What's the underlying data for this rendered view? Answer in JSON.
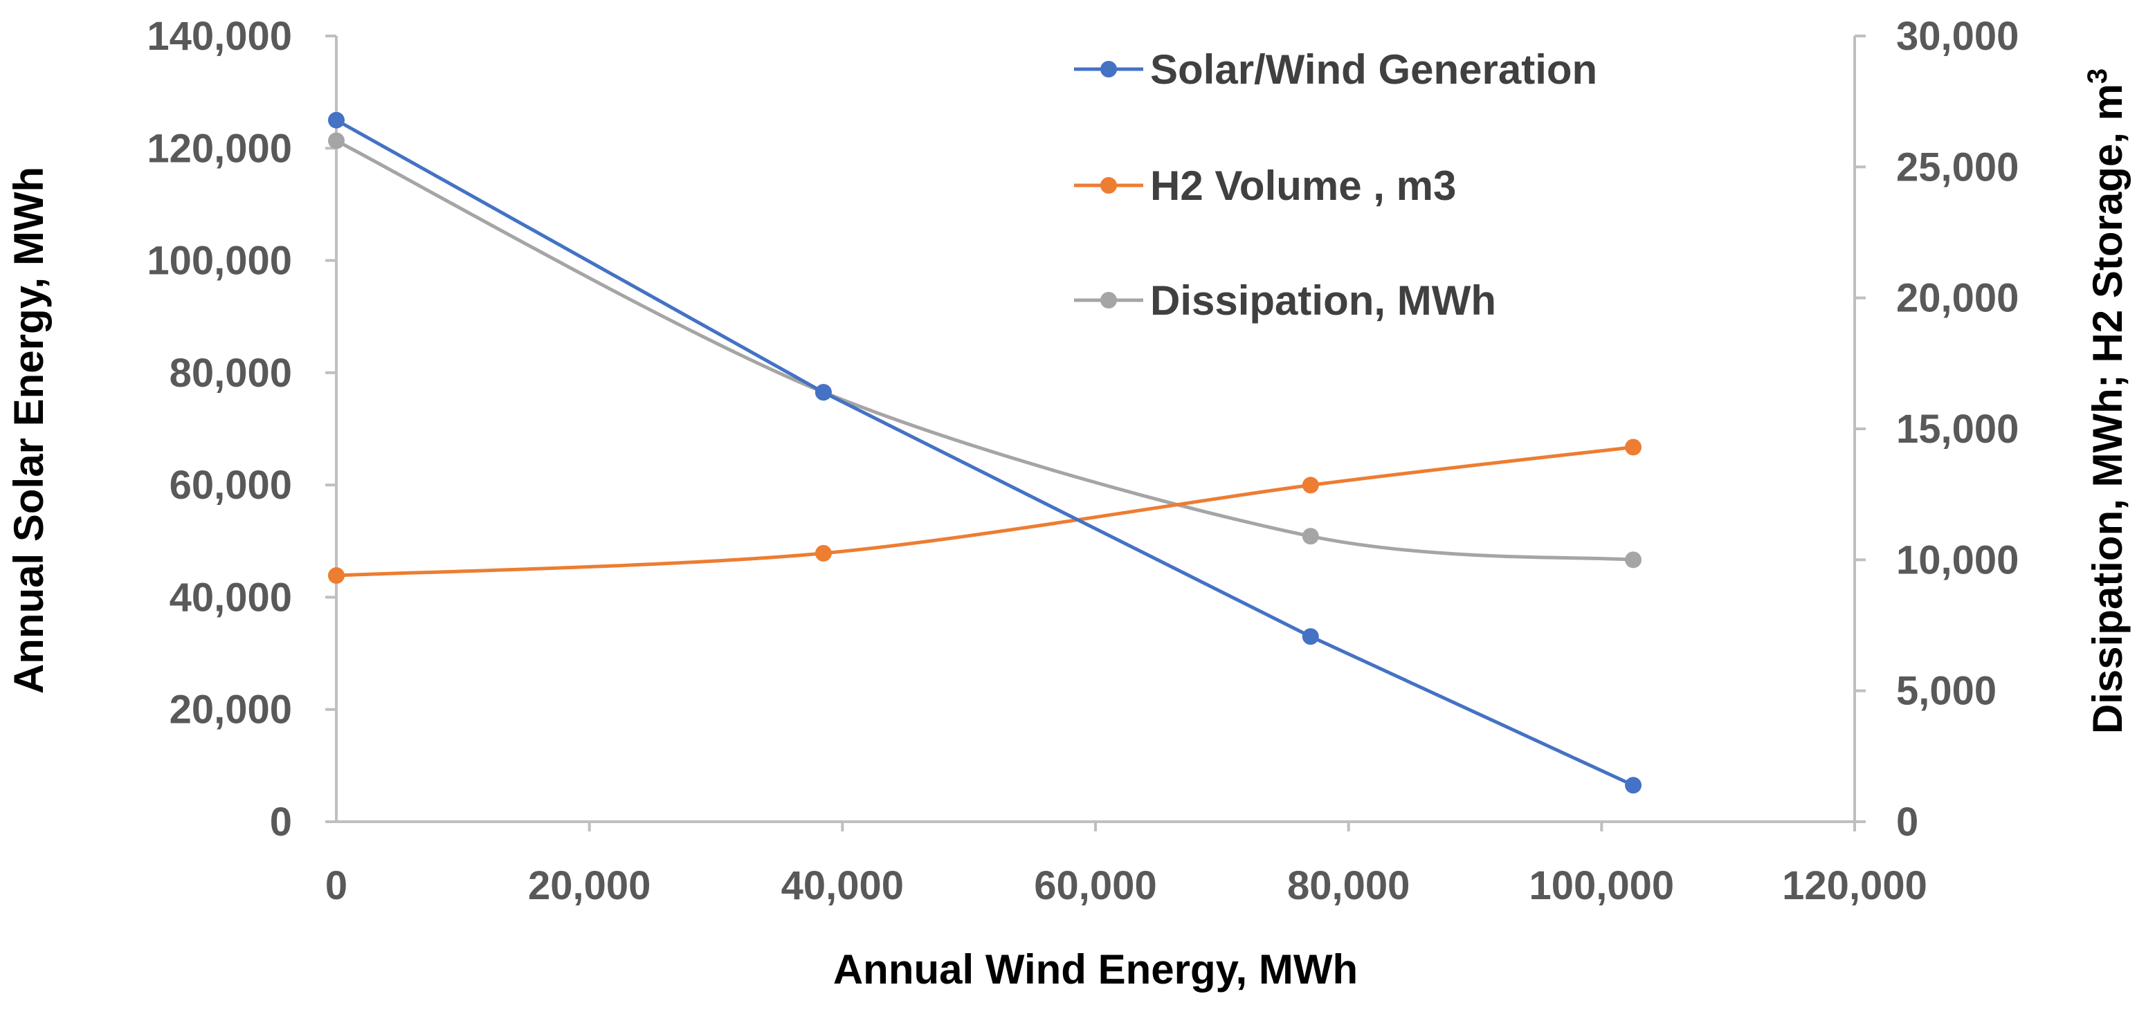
{
  "chart_data": {
    "type": "line",
    "title": "",
    "xlabel": "Annual Wind Energy, MWh",
    "ylabel_left": "Annual Solar Energy, MWh",
    "ylabel_right_main": "Dissipation, MWh; H2 Storage, m",
    "ylabel_right_sup": "3",
    "xlim": [
      0,
      120000
    ],
    "ylim_left": [
      0,
      140000
    ],
    "ylim_right": [
      0,
      30000
    ],
    "x_ticks": [
      0,
      20000,
      40000,
      60000,
      80000,
      100000,
      120000
    ],
    "x_tick_labels": [
      "0",
      "20,000",
      "40,000",
      "60,000",
      "80,000",
      "100,000",
      "120,000"
    ],
    "y_left_ticks": [
      0,
      20000,
      40000,
      60000,
      80000,
      100000,
      120000,
      140000
    ],
    "y_left_tick_labels": [
      "0",
      "20,000",
      "40,000",
      "60,000",
      "80,000",
      "100,000",
      "120,000",
      "140,000"
    ],
    "y_right_ticks": [
      0,
      5000,
      10000,
      15000,
      20000,
      25000,
      30000
    ],
    "y_right_tick_labels": [
      "0",
      "5,000",
      "10,000",
      "15,000",
      "20,000",
      "25,000",
      "30,000"
    ],
    "grid": false,
    "legend_position": "top-right",
    "series": [
      {
        "name": "Solar/Wind Generation",
        "axis": "left",
        "color": "#4472C4",
        "smooth": false,
        "x": [
          0,
          38500,
          77000,
          102500
        ],
        "y": [
          125000,
          76500,
          33000,
          6500
        ]
      },
      {
        "name": "H2 Volume , m3",
        "axis": "right",
        "color": "#ED7D31",
        "smooth": true,
        "x": [
          0,
          38500,
          77000,
          102500
        ],
        "y": [
          9400,
          10250,
          12850,
          14300
        ]
      },
      {
        "name": "Dissipation, MWh",
        "axis": "right",
        "color": "#A5A5A5",
        "smooth": true,
        "x": [
          0,
          38500,
          77000,
          102500
        ],
        "y": [
          26000,
          16400,
          10900,
          10000
        ]
      }
    ]
  }
}
